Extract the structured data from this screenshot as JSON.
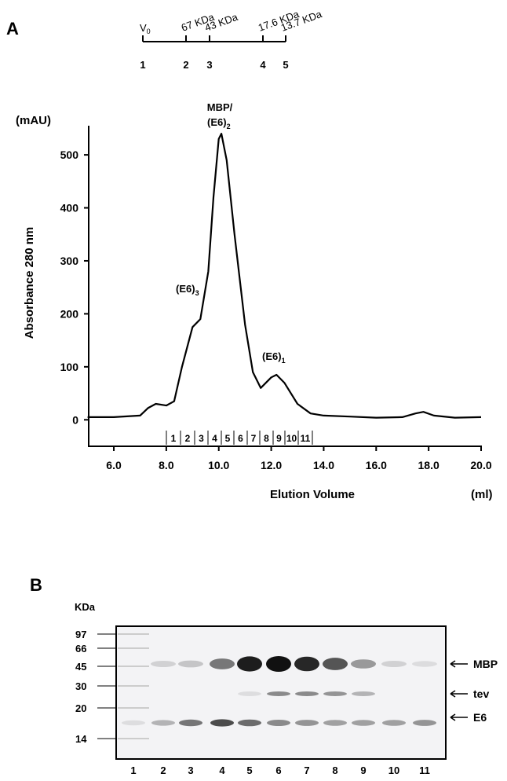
{
  "panel_a": {
    "letter": "A",
    "calibration": {
      "markers": [
        {
          "number": "1",
          "label": "V",
          "sub": "0"
        },
        {
          "number": "2",
          "label": "67 KDa"
        },
        {
          "number": "3",
          "label": "43 KDa"
        },
        {
          "number": "4",
          "label": "17.6 KDa"
        },
        {
          "number": "5",
          "label": "13.7 KDa"
        }
      ]
    },
    "fractions": [
      "1",
      "2",
      "3",
      "4",
      "5",
      "6",
      "7",
      "8",
      "9",
      "10",
      "11"
    ]
  },
  "chart_data": {
    "type": "line",
    "y_label": "Absorbance 280 nm",
    "y_unit": "(mAU)",
    "x_label": "Elution Volume",
    "x_unit": "(ml)",
    "xlim": [
      5,
      20
    ],
    "ylim": [
      -50,
      555
    ],
    "xticks": [
      {
        "value": 6,
        "label": "6.0"
      },
      {
        "value": 8,
        "label": "8.0"
      },
      {
        "value": 10,
        "label": "10.0"
      },
      {
        "value": 12,
        "label": "12.0"
      },
      {
        "value": 14,
        "label": "14.0"
      },
      {
        "value": 16,
        "label": "16.0"
      },
      {
        "value": 18,
        "label": "18.0"
      },
      {
        "value": 20,
        "label": "20.0"
      }
    ],
    "yticks": [
      0,
      100,
      200,
      300,
      400,
      500
    ],
    "annotations": [
      {
        "text": "MBP/",
        "line2": "(E6)",
        "sub": "2"
      },
      {
        "text": "(E6)",
        "sub": "3"
      },
      {
        "text": "(E6)",
        "sub": "1"
      }
    ],
    "x": [
      5.0,
      6.0,
      7.0,
      7.3,
      7.6,
      8.0,
      8.3,
      8.6,
      9.0,
      9.3,
      9.6,
      9.8,
      10.0,
      10.1,
      10.3,
      10.6,
      11.0,
      11.3,
      11.6,
      12.0,
      12.2,
      12.5,
      13.0,
      13.5,
      14.0,
      15.0,
      16.0,
      17.0,
      17.5,
      17.8,
      18.2,
      19.0,
      20.0
    ],
    "series": [
      {
        "name": "A280",
        "color": "#000000",
        "values": [
          5,
          5,
          8,
          22,
          30,
          27,
          35,
          100,
          175,
          190,
          280,
          420,
          530,
          540,
          490,
          350,
          180,
          90,
          60,
          80,
          85,
          70,
          30,
          12,
          8,
          6,
          4,
          5,
          12,
          15,
          8,
          4,
          5
        ]
      }
    ]
  },
  "panel_b": {
    "letter": "B",
    "unit": "KDa",
    "markers": [
      "97",
      "66",
      "45",
      "30",
      "20",
      "14"
    ],
    "lanes": [
      "1",
      "2",
      "3",
      "4",
      "5",
      "6",
      "7",
      "8",
      "9",
      "10",
      "11"
    ],
    "bands": [
      "MBP",
      "tev",
      "E6"
    ]
  }
}
